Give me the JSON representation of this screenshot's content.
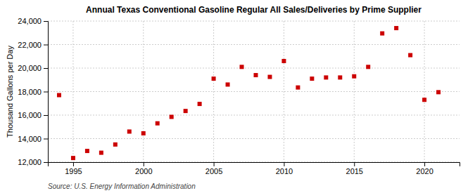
{
  "chart_data": {
    "type": "scatter",
    "title": "Annual Texas Conventional Gasoline Regular All Sales/Deliveries by Prime Supplier",
    "ylabel": "Thousand Gallons per Day",
    "annotation": "Source: U.S. Energy Information Administration",
    "x": [
      1994,
      1995,
      1996,
      1997,
      1998,
      1999,
      2000,
      2001,
      2002,
      2003,
      2004,
      2005,
      2006,
      2007,
      2008,
      2009,
      2010,
      2011,
      2012,
      2013,
      2014,
      2015,
      2016,
      2017,
      2018,
      2019,
      2020,
      2021
    ],
    "values": [
      17700,
      12350,
      12950,
      12800,
      13500,
      14600,
      14450,
      15300,
      15850,
      16350,
      16950,
      19100,
      18600,
      20100,
      19400,
      19250,
      20600,
      18350,
      19100,
      19200,
      19200,
      19300,
      20100,
      22950,
      23400,
      21100,
      17300,
      17950
    ],
    "color": "#cc0000",
    "marker": "square",
    "xlim": [
      1993.2,
      2022.5
    ],
    "xticks": [
      1995,
      2000,
      2005,
      2010,
      2015,
      2020
    ],
    "ylim": [
      12000,
      24000
    ],
    "yticks": [
      {
        "value": 12000,
        "label": "12,000"
      },
      {
        "value": 14000,
        "label": "14,000"
      },
      {
        "value": 16000,
        "label": "16,000"
      },
      {
        "value": 18000,
        "label": "18,000"
      },
      {
        "value": 20000,
        "label": "20,000"
      },
      {
        "value": 22000,
        "label": "22,000"
      },
      {
        "value": 24000,
        "label": "24,000"
      }
    ],
    "grid": true
  }
}
